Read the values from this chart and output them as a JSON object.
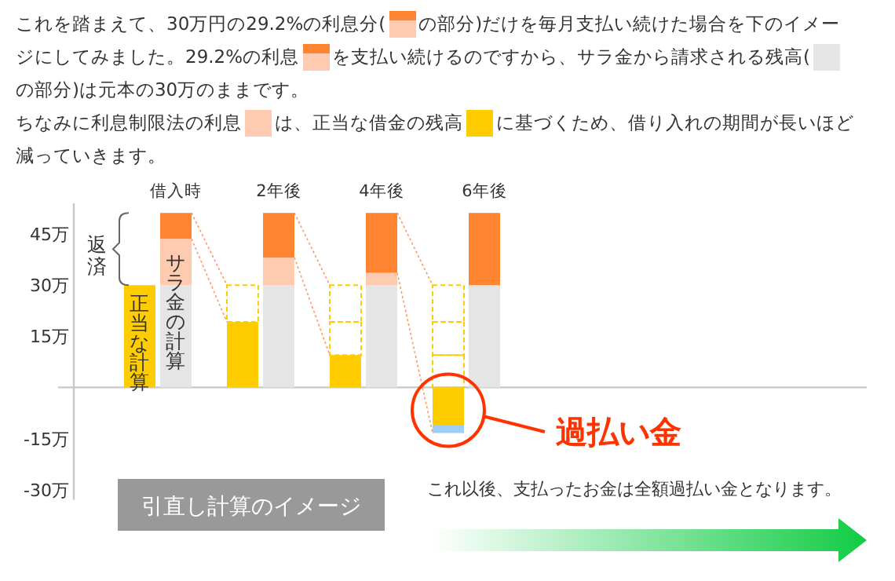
{
  "chart_data": {
    "type": "bar",
    "stacked": true,
    "title": "これを踏まえて、30万円の29.2%の利息分(　の部分)だけを毎月支払い続けた場合を下のイメージにしてみました。29.2%の利息　を支払い続けるのですから、サラ金から請求される残高(　の部分)は元本の30万のままです。",
    "subtitle": "ちなみに利息制限法の利息　は、正当な借金の残高　に基づくため、借り入れの期間が長いほど減っていきます。",
    "categories": [
      null,
      "借入時",
      null,
      "2年後",
      null,
      "4年後",
      null,
      "6年後"
    ],
    "series": [
      {
        "name": "正当な計算",
        "color": "#ffcc00",
        "values": [
          30,
          null,
          19.2,
          null,
          9.5,
          null,
          -11.2,
          null
        ]
      },
      {
        "color": "#a0cdf4",
        "values": [
          null,
          null,
          null,
          null,
          null,
          null,
          -2.2,
          null
        ]
      },
      {
        "name": "サラ金の計算",
        "color": "#e5e5e5",
        "values": [
          null,
          30,
          null,
          30,
          null,
          30,
          null,
          30
        ]
      },
      {
        "color": "#ffcbb0",
        "values": [
          null,
          13.6,
          null,
          8.1,
          null,
          3.6,
          null,
          null
        ]
      },
      {
        "color": "#ff8533",
        "values": [
          null,
          7.6,
          null,
          13.1,
          null,
          17.6,
          null,
          21.2
        ]
      },
      {
        "line_style": "dashed",
        "color": "#ffcc00",
        "values": [
          null,
          null,
          10.8,
          null,
          9.7,
          null,
          9.5,
          null
        ]
      },
      {
        "line_style": "dashed",
        "color": "#ffcc00",
        "values": [
          null,
          null,
          null,
          null,
          10.8,
          null,
          9.7,
          null
        ]
      },
      {
        "line_style": "dashed",
        "color": "#ffcc00",
        "values": [
          null,
          null,
          null,
          null,
          null,
          null,
          10.8,
          null
        ]
      }
    ],
    "ylim": [
      -33,
      54
    ],
    "yticks": [
      {
        "value": 45,
        "label": "45万"
      },
      {
        "value": 30,
        "label": "30万"
      },
      {
        "value": 15,
        "label": "15万"
      },
      {
        "value": -15,
        "label": "-15万"
      },
      {
        "value": -30,
        "label": "-30万"
      }
    ],
    "grid": false,
    "annotations": [
      "返済",
      "過払い金",
      "引直し計算のイメージ",
      "これ以後、支払ったお金は全額過払い金となります。"
    ]
  }
}
